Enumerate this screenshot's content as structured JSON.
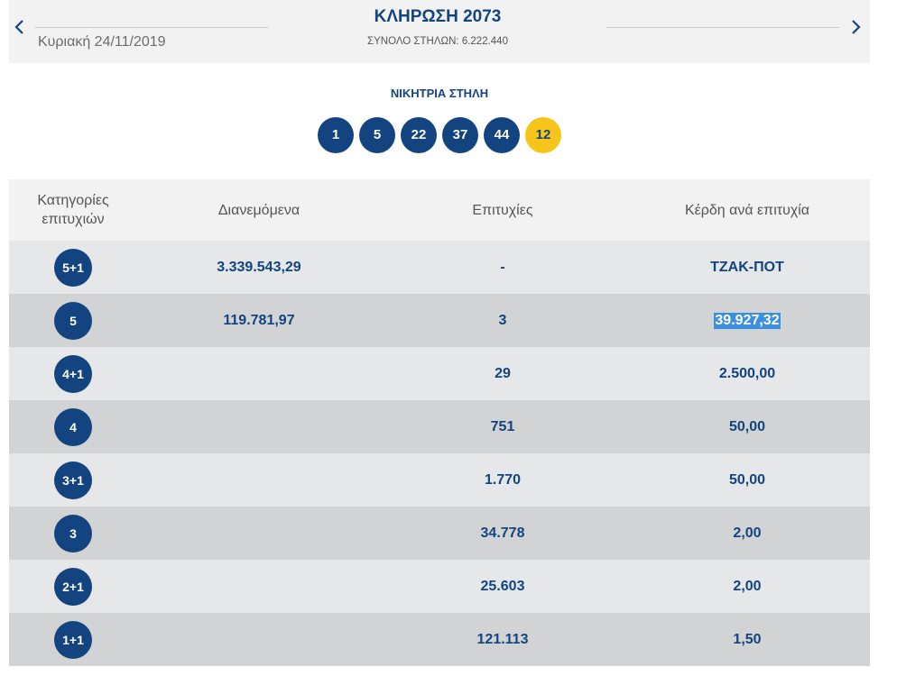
{
  "header": {
    "date": "Κυριακή 24/11/2019",
    "draw_title": "ΚΛΗΡΩΣΗ 2073",
    "total_columns": "ΣΥΝΟΛΟ ΣΤΗΛΩΝ: 6.222.440",
    "prev_icon": "chevron-left-icon",
    "next_icon": "chevron-right-icon"
  },
  "winning": {
    "label": "ΝΙΚΗΤΡΙΑ ΣΤΗΛΗ",
    "numbers": [
      "1",
      "5",
      "22",
      "37",
      "44"
    ],
    "joker": "12",
    "colors": {
      "ball": "#13447f",
      "joker": "#f7c51a"
    }
  },
  "table": {
    "headers": {
      "category_line1": "Κατηγορίες",
      "category_line2": "επιτυχιών",
      "distributed": "Διανεμόμενα",
      "winners": "Επιτυχίες",
      "prize": "Κέρδη ανά επιτυχία"
    },
    "rows": [
      {
        "category": "5+1",
        "distributed": "3.339.543,29",
        "winners": "-",
        "prize": "ΤΖΑΚ-ΠΟΤ"
      },
      {
        "category": "5",
        "distributed": "119.781,97",
        "winners": "3",
        "prize": "39.927,32"
      },
      {
        "category": "4+1",
        "distributed": "",
        "winners": "29",
        "prize": "2.500,00"
      },
      {
        "category": "4",
        "distributed": "",
        "winners": "751",
        "prize": "50,00"
      },
      {
        "category": "3+1",
        "distributed": "",
        "winners": "1.770",
        "prize": "50,00"
      },
      {
        "category": "3",
        "distributed": "",
        "winners": "34.778",
        "prize": "2,00"
      },
      {
        "category": "2+1",
        "distributed": "",
        "winners": "25.603",
        "prize": "2,00"
      },
      {
        "category": "1+1",
        "distributed": "",
        "winners": "121.113",
        "prize": "1,50"
      }
    ]
  }
}
